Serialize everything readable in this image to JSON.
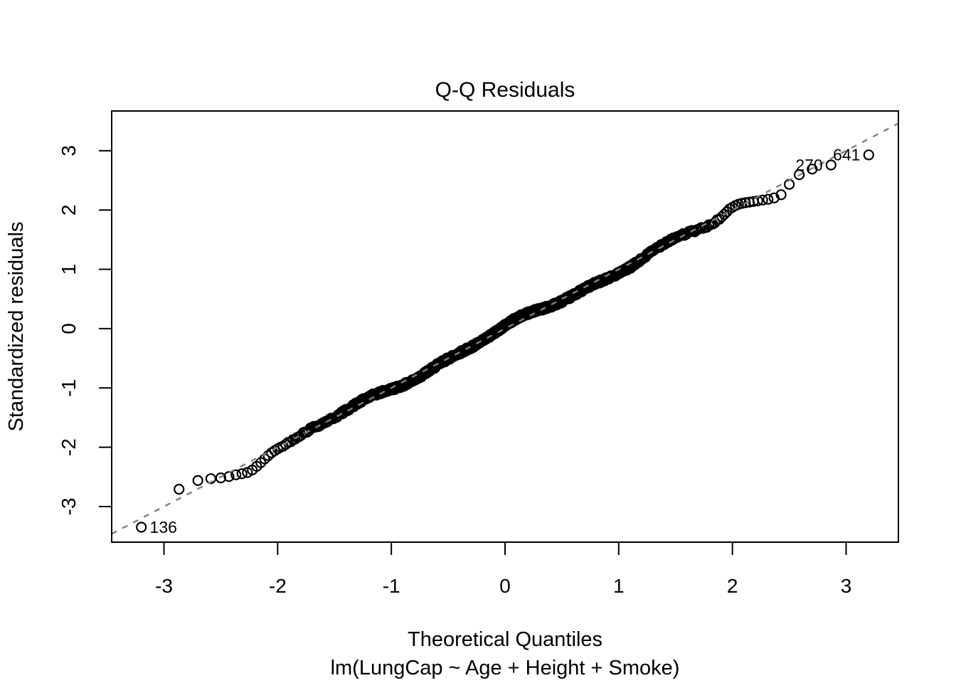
{
  "title": "Q-Q Residuals",
  "x_axis": {
    "label": "Theoretical Quantiles",
    "tick_labels": [
      "-3",
      "-2",
      "-1",
      "0",
      "1",
      "2",
      "3"
    ]
  },
  "y_axis": {
    "label": "Standardized residuals",
    "tick_labels": [
      "-3",
      "-2",
      "-1",
      "0",
      "1",
      "2",
      "3"
    ]
  },
  "caption": "lm(LungCap ~ Age + Height + Smoke)",
  "chart_data": {
    "type": "scatter",
    "subtype": "qq-normal-plot",
    "title": "Q-Q Residuals",
    "xlabel": "Theoretical Quantiles",
    "ylabel": "Standardized residuals",
    "model_caption": "lm(LungCap ~ Age + Height + Smoke)",
    "n_points": 725,
    "xlim": [
      -3.46,
      3.46
    ],
    "ylim": [
      -3.6,
      3.67
    ],
    "x_ticks": [
      -3,
      -2,
      -1,
      0,
      1,
      2,
      3
    ],
    "y_ticks": [
      -3,
      -2,
      -1,
      0,
      1,
      2,
      3
    ],
    "grid": false,
    "legend": "none",
    "reference_line": {
      "slope": 1,
      "intercept": 0,
      "style": "dotted",
      "color": "#808080"
    },
    "point_style": {
      "marker": "open-circle",
      "radius_px": 6.5,
      "stroke": "#000000",
      "stroke_width": 2.2
    },
    "labeled_points": [
      {
        "id": "136",
        "x": -3.2,
        "y": -3.35,
        "label_side": "right"
      },
      {
        "id": "270",
        "x": 2.87,
        "y": 2.76,
        "label_side": "left"
      },
      {
        "id": "641",
        "x": 3.2,
        "y": 2.93,
        "label_side": "left"
      }
    ],
    "qq_curve_anchors": [
      [
        -3.2,
        -3.35
      ],
      [
        -2.87,
        -2.71
      ],
      [
        -2.7,
        -2.56
      ],
      [
        -2.59,
        -2.53
      ],
      [
        -2.51,
        -2.52
      ],
      [
        -2.44,
        -2.5
      ],
      [
        -2.38,
        -2.47
      ],
      [
        -2.32,
        -2.45
      ],
      [
        -2.27,
        -2.43
      ],
      [
        -2.22,
        -2.38
      ],
      [
        -2.17,
        -2.3
      ],
      [
        -2.1,
        -2.17
      ],
      [
        -2.04,
        -2.07
      ],
      [
        -1.98,
        -2.0
      ],
      [
        -1.7,
        -1.71
      ],
      [
        -1.4,
        -1.41
      ],
      [
        -1.1,
        -1.11
      ],
      [
        -0.8,
        -0.8
      ],
      [
        -0.5,
        -0.5
      ],
      [
        -0.2,
        -0.2
      ],
      [
        0.1,
        0.1
      ],
      [
        0.4,
        0.4
      ],
      [
        0.7,
        0.69
      ],
      [
        1.0,
        0.98
      ],
      [
        1.3,
        1.28
      ],
      [
        1.6,
        1.57
      ],
      [
        1.81,
        1.75
      ],
      [
        1.9,
        1.87
      ],
      [
        1.98,
        2.02
      ],
      [
        2.04,
        2.09
      ],
      [
        2.1,
        2.12
      ],
      [
        2.17,
        2.14
      ],
      [
        2.24,
        2.16
      ],
      [
        2.31,
        2.18
      ],
      [
        2.38,
        2.21
      ],
      [
        2.44,
        2.27
      ],
      [
        2.51,
        2.46
      ],
      [
        2.59,
        2.6
      ],
      [
        2.7,
        2.69
      ],
      [
        2.87,
        2.76
      ],
      [
        3.2,
        2.93
      ]
    ]
  }
}
